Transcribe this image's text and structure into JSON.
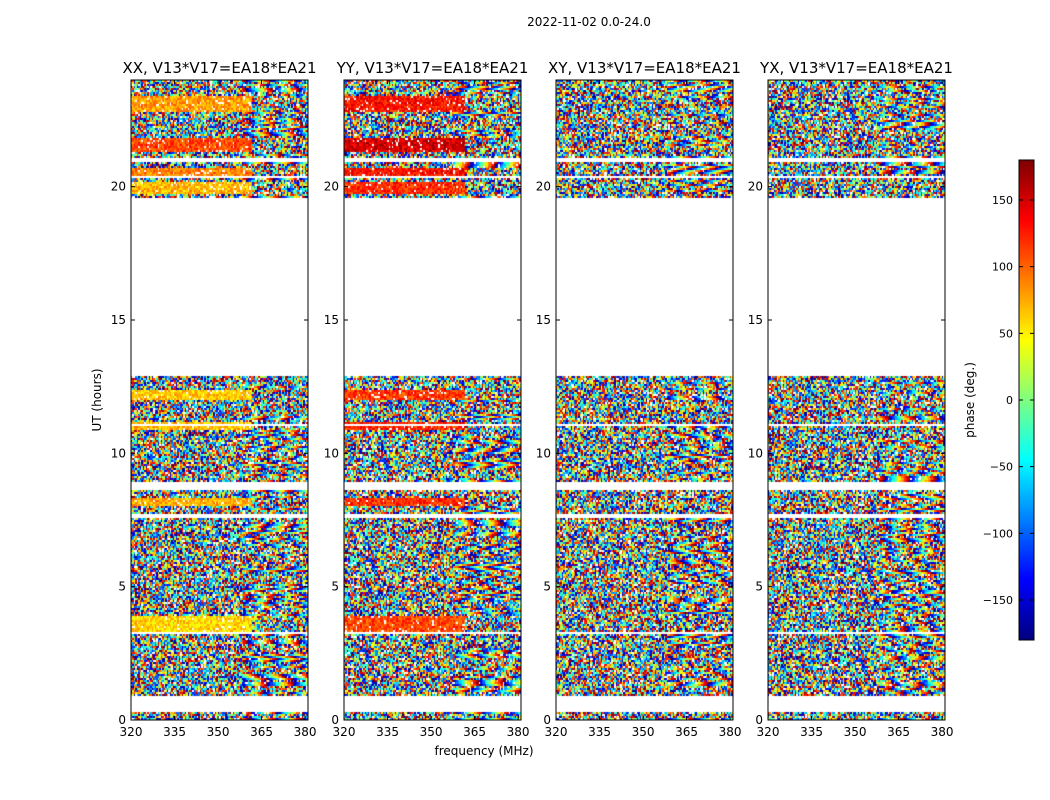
{
  "figure_title": "2022-11-02 0.0-24.0",
  "chart_data": {
    "type": "heatmap",
    "shared_ylabel": "UT (hours)",
    "shared_xlabel": "frequency (MHz)",
    "xlim": [
      320,
      381
    ],
    "ylim": [
      0,
      24
    ],
    "xticks": [
      320,
      335,
      350,
      365,
      380
    ],
    "yticks": [
      0,
      5,
      10,
      15,
      20
    ],
    "panels": [
      {
        "title": "XX, V13*V17=EA18*EA21",
        "pol": "XX"
      },
      {
        "title": "YY, V13*V17=EA18*EA21",
        "pol": "YY"
      },
      {
        "title": "XY, V13*V17=EA18*EA21",
        "pol": "XY"
      },
      {
        "title": "YX, V13*V17=EA18*EA21",
        "pol": "YX"
      }
    ],
    "data_bands_hours": [
      [
        0.0,
        0.3
      ],
      [
        0.9,
        3.2
      ],
      [
        3.3,
        7.6
      ],
      [
        7.7,
        8.6
      ],
      [
        8.9,
        11.0
      ],
      [
        11.1,
        12.9
      ],
      [
        19.6,
        20.3
      ],
      [
        20.4,
        20.9
      ],
      [
        21.1,
        24.0
      ]
    ],
    "coherent_bands_hours": [
      {
        "range": [
          3.3,
          3.9
        ],
        "phase_xx": 60,
        "phase_yy": 110
      },
      {
        "range": [
          8.0,
          8.3
        ],
        "phase_xx": 75,
        "phase_yy": 120
      },
      {
        "range": [
          10.9,
          11.2
        ],
        "phase_xx": 70,
        "phase_yy": 125
      },
      {
        "range": [
          12.0,
          12.4
        ],
        "phase_xx": 65,
        "phase_yy": 115
      },
      {
        "range": [
          19.7,
          20.2
        ],
        "phase_xx": 70,
        "phase_yy": 120
      },
      {
        "range": [
          20.4,
          20.7
        ],
        "phase_xx": 90,
        "phase_yy": 130
      },
      {
        "range": [
          21.3,
          21.8
        ],
        "phase_xx": 110,
        "phase_yy": 150
      },
      {
        "range": [
          22.8,
          23.4
        ],
        "phase_xx": 80,
        "phase_yy": 130
      }
    ],
    "colorbar": {
      "label": "phase (deg.)",
      "range": [
        -180,
        180
      ],
      "ticks": [
        -150,
        -100,
        -50,
        0,
        50,
        100,
        150
      ],
      "tick_labels": [
        "−150",
        "−100",
        "−50",
        "0",
        "50",
        "100",
        "150"
      ]
    }
  }
}
